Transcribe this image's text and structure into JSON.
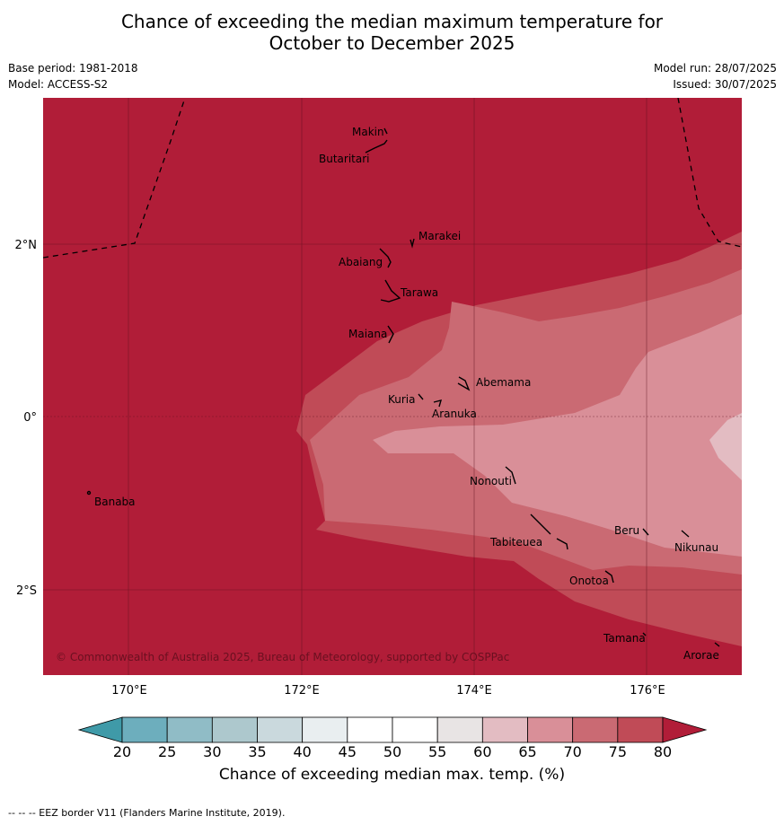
{
  "title_line1": "Chance of exceeding the median maximum temperature for",
  "title_line2": "October to December 2025",
  "base_period": "Base period: 1981-2018",
  "model": "Model: ACCESS-S2",
  "model_run": "Model run: 28/07/2025",
  "issued": "Issued: 30/07/2025",
  "copyright": "© Commonwealth of Australia 2025, Bureau of Meteorology, supported by COSPPac",
  "eez_note": "-- -- -- EEZ border V11 (Flanders Marine Institute, 2019).",
  "colorbar": {
    "label": "Chance of exceeding median max. temp. (%)",
    "ticks": [
      "20",
      "25",
      "30",
      "35",
      "40",
      "45",
      "50",
      "55",
      "60",
      "65",
      "70",
      "75",
      "80"
    ],
    "colors": [
      "#3f9aa8",
      "#6daebd",
      "#90bcc6",
      "#adc8cd",
      "#cad9dd",
      "#e9eef0",
      "#ffffff",
      "#ffffff",
      "#e8e4e4",
      "#e3bcc2",
      "#d98f98",
      "#ca6a73",
      "#c04b57",
      "#b11d38"
    ]
  },
  "axes": {
    "lon_labels": [
      "170°E",
      "172°E",
      "174°E",
      "176°E"
    ],
    "lat_labels": [
      "2°N",
      "0°",
      "2°S"
    ]
  },
  "islands": [
    {
      "name": "Makin",
      "lon": 172.95,
      "lat": 3.35
    },
    {
      "name": "Butaritari",
      "lon": 172.85,
      "lat": 3.1
    },
    {
      "name": "Marakei",
      "lon": 173.3,
      "lat": 2.0
    },
    {
      "name": "Abaiang",
      "lon": 173.0,
      "lat": 1.85
    },
    {
      "name": "Tarawa",
      "lon": 173.1,
      "lat": 1.4
    },
    {
      "name": "Maiana",
      "lon": 173.0,
      "lat": 0.9
    },
    {
      "name": "Abemama",
      "lon": 173.9,
      "lat": 0.4
    },
    {
      "name": "Kuria",
      "lon": 173.45,
      "lat": 0.23
    },
    {
      "name": "Aranuka",
      "lon": 173.6,
      "lat": 0.15
    },
    {
      "name": "Nonouti",
      "lon": 174.4,
      "lat": -0.65
    },
    {
      "name": "Banaba",
      "lon": 169.55,
      "lat": -0.87
    },
    {
      "name": "Tabiteuea",
      "lon": 174.8,
      "lat": -1.3
    },
    {
      "name": "Beru",
      "lon": 176.0,
      "lat": -1.35
    },
    {
      "name": "Nikunau",
      "lon": 176.45,
      "lat": -1.35
    },
    {
      "name": "Onotoa",
      "lon": 175.6,
      "lat": -1.8
    },
    {
      "name": "Tamana",
      "lon": 175.98,
      "lat": -2.5
    },
    {
      "name": "Arorae",
      "lon": 176.8,
      "lat": -2.65
    }
  ]
}
